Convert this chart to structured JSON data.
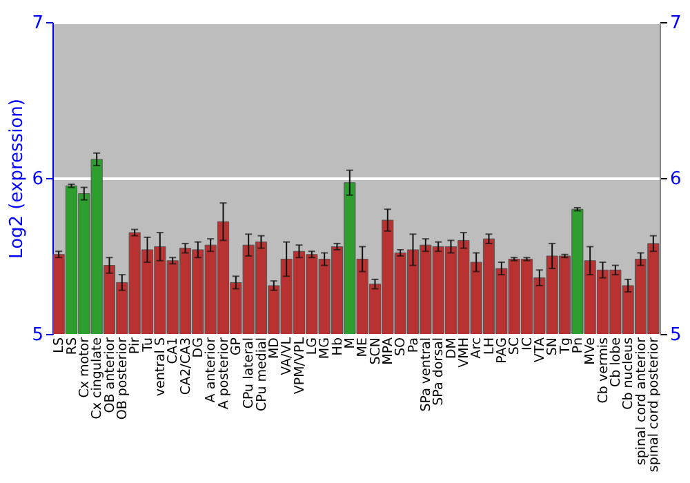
{
  "chart_data": {
    "type": "bar",
    "ylabel": "Log2 (expression)",
    "categories": [
      "LS",
      "RS",
      "Cx motor",
      "Cx cingulate",
      "OB anterior",
      "OB posterior",
      "Pir",
      "Tu",
      "ventral S",
      "CA1",
      "CA2/CA3",
      "DG",
      "A anterior",
      "A posterior",
      "GP",
      "CPu lateral",
      "CPu medial",
      "MD",
      "VA/VL",
      "VPM/VPL",
      "LG",
      "MG",
      "Hb",
      "M",
      "ME",
      "SCN",
      "MPA",
      "SO",
      "Pa",
      "SPa ventral",
      "SPa dorsal",
      "DM",
      "VMH",
      "Arc",
      "LH",
      "PAG",
      "SC",
      "IC",
      "VTA",
      "SN",
      "Tg",
      "Pn",
      "MVe",
      "Cb vermis",
      "Cb lobe",
      "Cb nucleus",
      "spinal cord anterior",
      "spinal cord posterior"
    ],
    "values": [
      5.51,
      5.95,
      5.9,
      6.12,
      5.44,
      5.33,
      5.65,
      5.54,
      5.56,
      5.47,
      5.55,
      5.54,
      5.57,
      5.72,
      5.33,
      5.57,
      5.59,
      5.31,
      5.48,
      5.53,
      5.51,
      5.48,
      5.56,
      5.97,
      5.48,
      5.32,
      5.73,
      5.52,
      5.54,
      5.57,
      5.56,
      5.56,
      5.6,
      5.46,
      5.61,
      5.42,
      5.48,
      5.48,
      5.36,
      5.5,
      5.5,
      5.8,
      5.47,
      5.41,
      5.41,
      5.31,
      5.48,
      5.58
    ],
    "errors": [
      0.02,
      0.01,
      0.04,
      0.04,
      0.05,
      0.05,
      0.02,
      0.08,
      0.09,
      0.02,
      0.03,
      0.05,
      0.04,
      0.12,
      0.04,
      0.07,
      0.04,
      0.03,
      0.11,
      0.04,
      0.02,
      0.04,
      0.02,
      0.08,
      0.08,
      0.03,
      0.07,
      0.02,
      0.1,
      0.04,
      0.03,
      0.04,
      0.05,
      0.06,
      0.03,
      0.04,
      0.01,
      0.01,
      0.05,
      0.08,
      0.01,
      0.01,
      0.09,
      0.05,
      0.03,
      0.04,
      0.04,
      0.05
    ],
    "colors": [
      "#b83232",
      "#2e9e2e",
      "#2e9e2e",
      "#2e9e2e",
      "#b83232",
      "#b83232",
      "#b83232",
      "#b83232",
      "#b83232",
      "#b83232",
      "#b83232",
      "#b83232",
      "#b83232",
      "#b83232",
      "#b83232",
      "#b83232",
      "#b83232",
      "#b83232",
      "#b83232",
      "#b83232",
      "#b83232",
      "#b83232",
      "#b83232",
      "#2e9e2e",
      "#b83232",
      "#b83232",
      "#b83232",
      "#b83232",
      "#b83232",
      "#b83232",
      "#b83232",
      "#b83232",
      "#b83232",
      "#b83232",
      "#b83232",
      "#b83232",
      "#b83232",
      "#b83232",
      "#b83232",
      "#b83232",
      "#b83232",
      "#2e9e2e",
      "#b83232",
      "#b83232",
      "#b83232",
      "#b83232",
      "#b83232",
      "#b83232"
    ],
    "ylim": [
      5,
      7
    ],
    "yticks": [
      5,
      6,
      7
    ],
    "y2lim": [
      5,
      7
    ],
    "y2ticks": [
      5,
      6,
      7
    ],
    "grid": "y",
    "legend": false
  }
}
